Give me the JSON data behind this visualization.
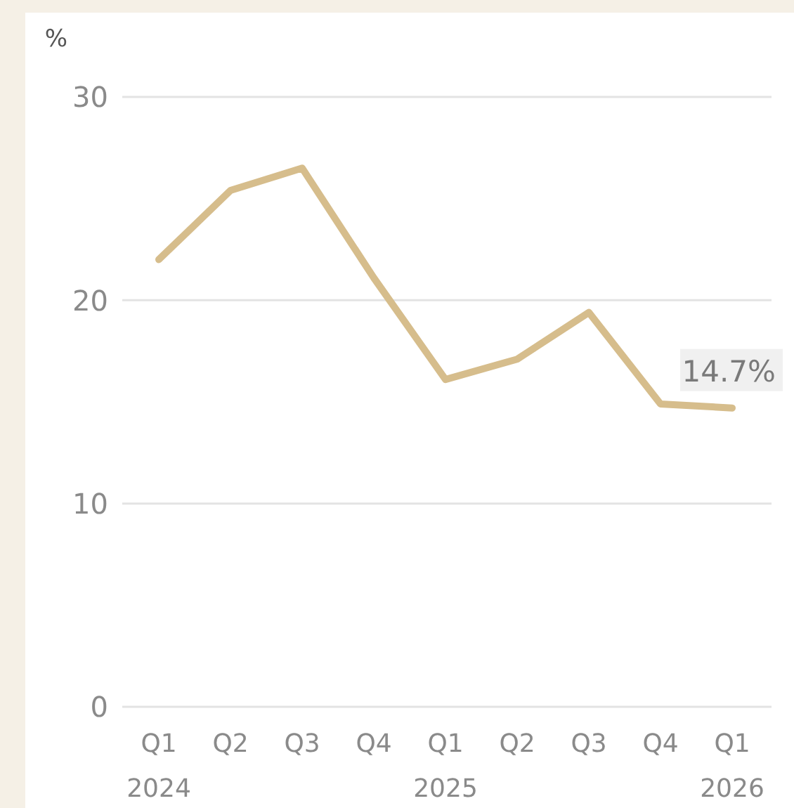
{
  "chart_data": {
    "type": "line",
    "ylabel": "%",
    "categories": [
      "Q1 2024",
      "Q2",
      "Q3",
      "Q4",
      "Q1 2025",
      "Q2",
      "Q3",
      "Q4",
      "Q1 2026"
    ],
    "series": [
      {
        "color": "#d6bd8c",
        "values": [
          22.0,
          25.4,
          26.5,
          21.1,
          16.1,
          17.1,
          19.4,
          14.9,
          14.7
        ],
        "value_labels": [
          null,
          null,
          null,
          null,
          null,
          null,
          null,
          null,
          "14.7%"
        ]
      }
    ],
    "ylim": [
      0,
      30
    ],
    "yticks": [
      0,
      10,
      20,
      30
    ],
    "grid": "y",
    "marker": "none",
    "line_style": "solid"
  }
}
